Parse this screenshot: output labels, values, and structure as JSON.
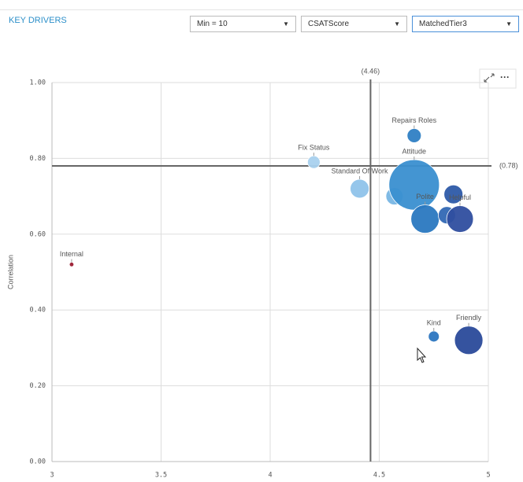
{
  "header": {
    "title": "KEY DRIVERS",
    "filters": [
      "Min = 10",
      "CSATScore",
      "MatchedTier3"
    ]
  },
  "chart_data": {
    "type": "bubble",
    "y_label": "Correlation",
    "categories": [
      "Internal",
      "Fix Status",
      "Standard Of Work",
      null,
      "Attitude",
      "Repairs Roles",
      "Polite",
      null,
      null,
      "Helpful",
      "Kind",
      "Friendly"
    ],
    "x": [
      3.09,
      4.2,
      4.41,
      4.57,
      4.66,
      4.66,
      4.71,
      4.84,
      4.81,
      4.87,
      4.75,
      4.91
    ],
    "values": [
      0.52,
      0.79,
      0.72,
      0.7,
      0.73,
      0.86,
      0.64,
      0.705,
      0.65,
      0.64,
      0.33,
      0.32
    ],
    "sizes": [
      2,
      16,
      36,
      30,
      256,
      20,
      81,
      36,
      30,
      72,
      12,
      81
    ],
    "colors": [
      "#9b1b30",
      "#a9d1ee",
      "#8fc3ea",
      "#78b6e4",
      "#3a8fd0",
      "#2f7fc4",
      "#2a78c0",
      "#2d5aa8",
      "#3168b4",
      "#2f4e9f",
      "#2c76c0",
      "#2a4a9a"
    ],
    "xlim": [
      3,
      5
    ],
    "xticks": [
      3,
      3.5,
      4,
      4.5,
      5
    ],
    "ylim": [
      0,
      1
    ],
    "yticks": [
      {
        "value": 0,
        "label": "0.00"
      },
      {
        "value": 0.2,
        "label": "0.20"
      },
      {
        "value": 0.4,
        "label": "0.40"
      },
      {
        "value": 0.6,
        "label": "0.60"
      },
      {
        "value": 0.8,
        "label": "0.80"
      },
      {
        "value": 1,
        "label": "1.00"
      }
    ],
    "reference_lines": [
      {
        "axis": "x",
        "value": 4.46,
        "label": "(4.46)"
      },
      {
        "axis": "y",
        "value": 0.78,
        "label": "(0.78)"
      }
    ],
    "grid": true
  }
}
